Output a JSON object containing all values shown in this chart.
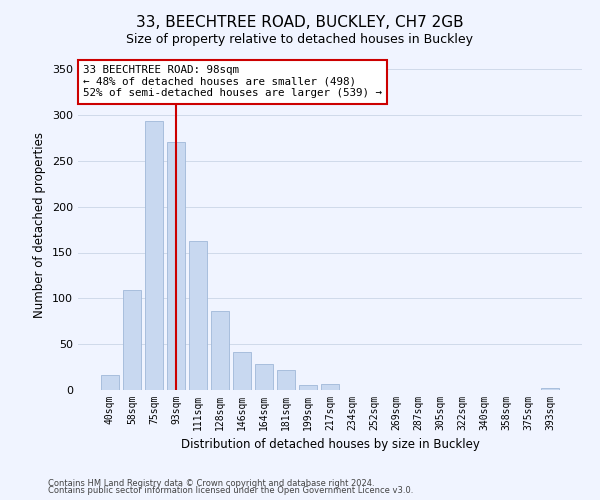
{
  "title": "33, BEECHTREE ROAD, BUCKLEY, CH7 2GB",
  "subtitle": "Size of property relative to detached houses in Buckley",
  "xlabel": "Distribution of detached houses by size in Buckley",
  "ylabel": "Number of detached properties",
  "bar_labels": [
    "40sqm",
    "58sqm",
    "75sqm",
    "93sqm",
    "111sqm",
    "128sqm",
    "146sqm",
    "164sqm",
    "181sqm",
    "199sqm",
    "217sqm",
    "234sqm",
    "252sqm",
    "269sqm",
    "287sqm",
    "305sqm",
    "322sqm",
    "340sqm",
    "358sqm",
    "375sqm",
    "393sqm"
  ],
  "bar_values": [
    16,
    109,
    293,
    270,
    163,
    86,
    41,
    28,
    22,
    5,
    7,
    0,
    0,
    0,
    0,
    0,
    0,
    0,
    0,
    0,
    2
  ],
  "bar_color": "#c8d8f0",
  "bar_edge_color": "#a0b8d8",
  "vline_x_index": 3,
  "vline_color": "#cc0000",
  "annotation_line1": "33 BEECHTREE ROAD: 98sqm",
  "annotation_line2": "← 48% of detached houses are smaller (498)",
  "annotation_line3": "52% of semi-detached houses are larger (539) →",
  "annotation_box_color": "#ffffff",
  "annotation_box_edge": "#cc0000",
  "ylim": [
    0,
    360
  ],
  "yticks": [
    0,
    50,
    100,
    150,
    200,
    250,
    300,
    350
  ],
  "footer_line1": "Contains HM Land Registry data © Crown copyright and database right 2024.",
  "footer_line2": "Contains public sector information licensed under the Open Government Licence v3.0.",
  "bg_color": "#f0f4ff",
  "grid_color": "#d0daea"
}
